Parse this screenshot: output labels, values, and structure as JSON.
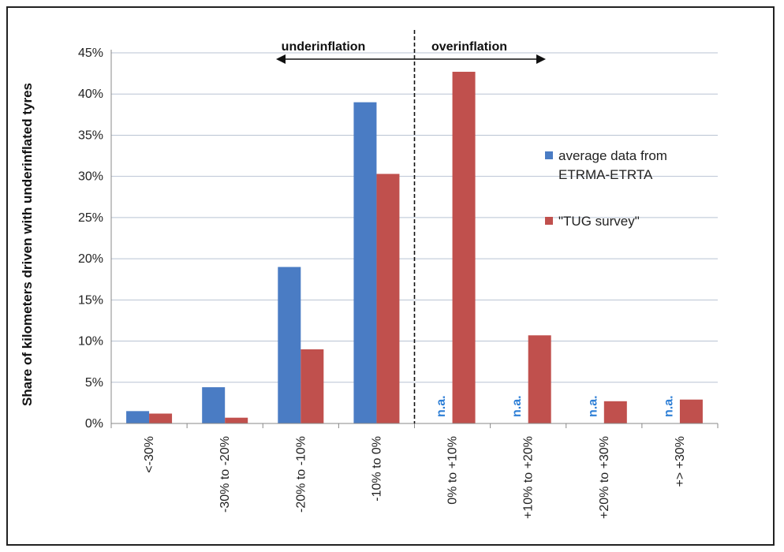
{
  "chart_data": {
    "type": "bar",
    "ylabel": "Share of kilometers driven with underinflated tyres",
    "xlabel": "",
    "ylim": [
      0,
      45
    ],
    "yticks": [
      "0%",
      "5%",
      "10%",
      "15%",
      "20%",
      "25%",
      "30%",
      "35%",
      "40%",
      "45%"
    ],
    "categories": [
      "<-30%",
      "-30% to -20%",
      "-20% to -10%",
      "-10% to 0%",
      "0% to +10%",
      "+10% to +20%",
      "+20% to +30%",
      "+> +30%"
    ],
    "series": [
      {
        "name": "average data from ETRMA-ETRTA",
        "legend_lines": [
          "average data from",
          "ETRMA-ETRTA"
        ],
        "color": "#4a7cc4",
        "values": [
          1.5,
          4.4,
          19.0,
          39.0,
          null,
          null,
          null,
          null
        ]
      },
      {
        "name": "\"TUG survey\"",
        "legend_lines": [
          "\"TUG survey\""
        ],
        "color": "#c0504d",
        "values": [
          1.2,
          0.7,
          9.0,
          30.3,
          42.7,
          10.7,
          2.7,
          2.9
        ]
      }
    ],
    "na_label": "n.a.",
    "annotations": {
      "left": "underinflation",
      "right": "overinflation"
    },
    "grid": true,
    "legend_position": "right"
  }
}
